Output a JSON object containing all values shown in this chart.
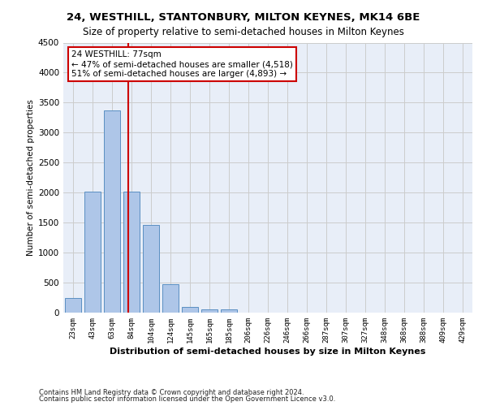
{
  "title": "24, WESTHILL, STANTONBURY, MILTON KEYNES, MK14 6BE",
  "subtitle": "Size of property relative to semi-detached houses in Milton Keynes",
  "xlabel": "Distribution of semi-detached houses by size in Milton Keynes",
  "ylabel": "Number of semi-detached properties",
  "footer1": "Contains HM Land Registry data © Crown copyright and database right 2024.",
  "footer2": "Contains public sector information licensed under the Open Government Licence v3.0.",
  "categories": [
    "23sqm",
    "43sqm",
    "63sqm",
    "84sqm",
    "104sqm",
    "124sqm",
    "145sqm",
    "165sqm",
    "185sqm",
    "206sqm",
    "226sqm",
    "246sqm",
    "266sqm",
    "287sqm",
    "307sqm",
    "327sqm",
    "348sqm",
    "368sqm",
    "388sqm",
    "409sqm",
    "429sqm"
  ],
  "values": [
    250,
    2020,
    3370,
    2010,
    1460,
    480,
    100,
    60,
    50,
    0,
    0,
    0,
    0,
    0,
    0,
    0,
    0,
    0,
    0,
    0,
    0
  ],
  "bar_color": "#aec6e8",
  "bar_edge_color": "#5a8fc2",
  "grid_color": "#cccccc",
  "bg_color": "#e8eef8",
  "vline_color": "#cc0000",
  "vline_x": 2.85,
  "annotation_text": "24 WESTHILL: 77sqm\n← 47% of semi-detached houses are smaller (4,518)\n51% of semi-detached houses are larger (4,893) →",
  "annotation_box_color": "#ffffff",
  "annotation_box_edge": "#cc0000",
  "ylim": [
    0,
    4500
  ],
  "yticks": [
    0,
    500,
    1000,
    1500,
    2000,
    2500,
    3000,
    3500,
    4000,
    4500
  ]
}
